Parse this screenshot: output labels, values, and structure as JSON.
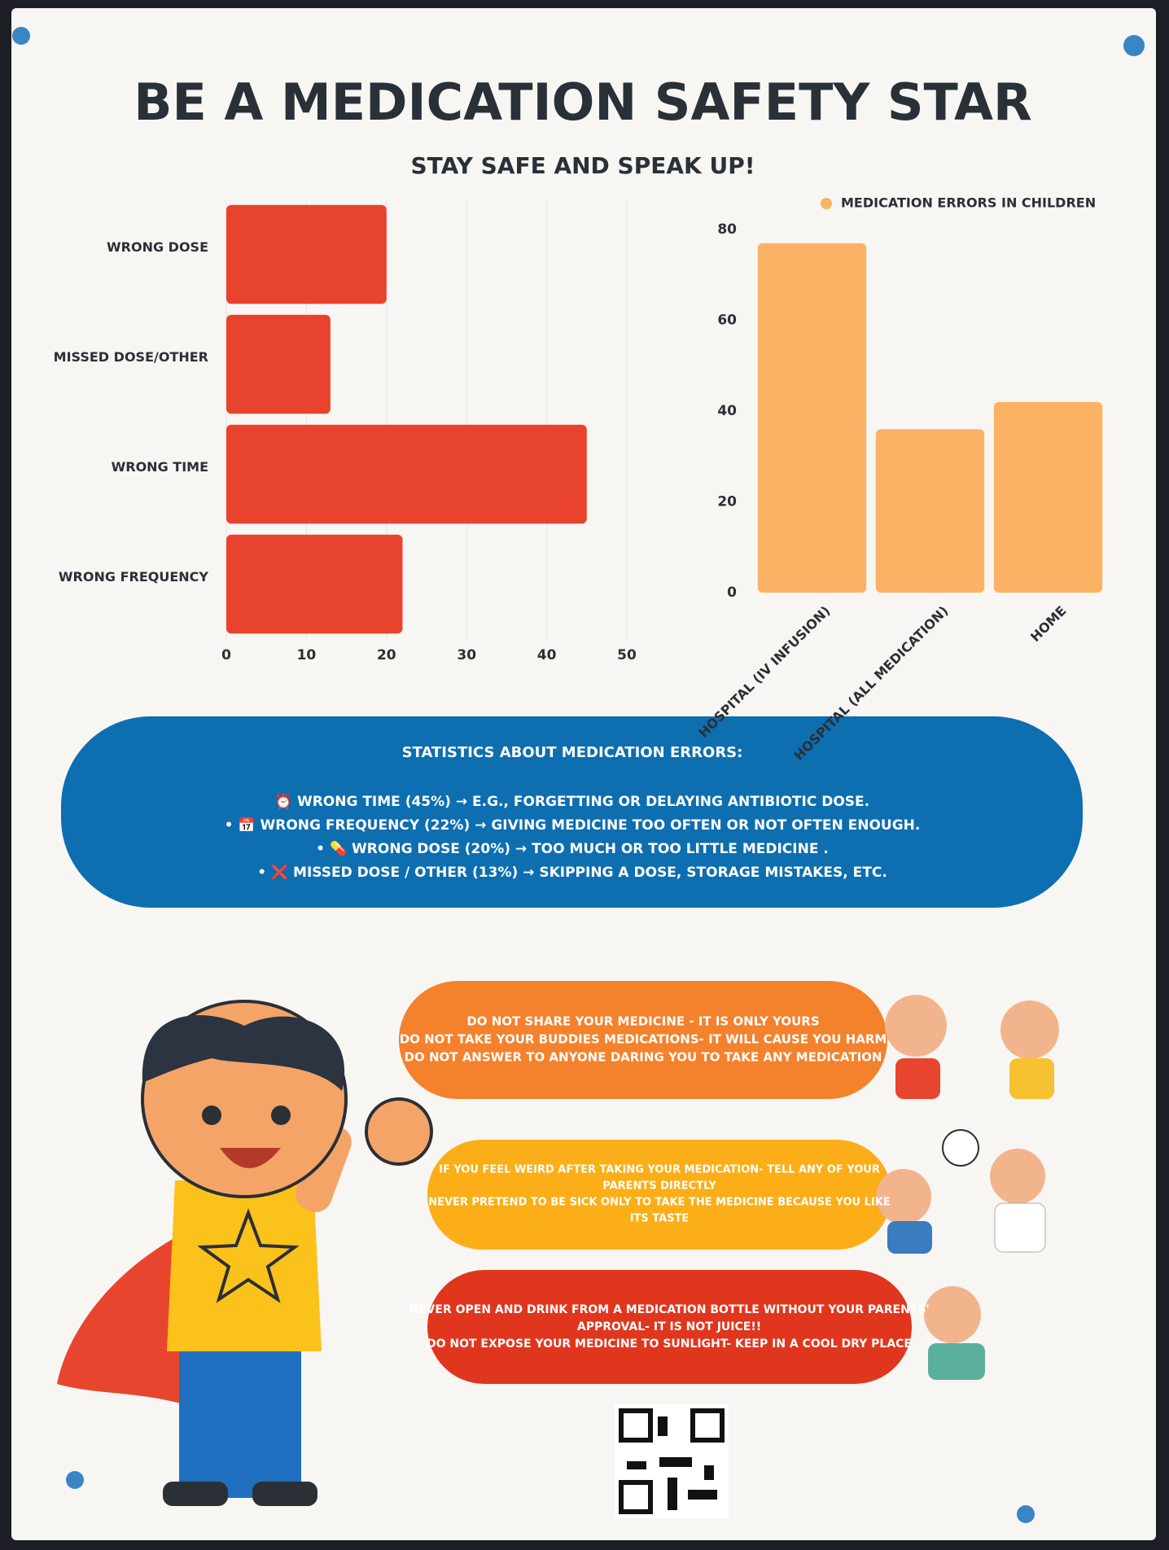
{
  "poster": {
    "title": "BE A MEDICATION SAFETY STAR",
    "subtitle": "STAY SAFE AND SPEAK UP!",
    "stats": {
      "heading": "STATISTICS ABOUT MEDICATION ERRORS:",
      "items": [
        "⏰ WRONG TIME (45%) → E.G., FORGETTING OR DELAYING ANTIBIOTIC DOSE.",
        "• 📅 WRONG FREQUENCY (22%) → GIVING MEDICINE TOO OFTEN OR NOT OFTEN ENOUGH.",
        "• 💊 WRONG DOSE (20%) → TOO MUCH OR TOO LITTLE MEDICINE .",
        "• ❌ MISSED DOSE / OTHER (13%) → SKIPPING A DOSE, STORAGE MISTAKES, ETC."
      ]
    },
    "tips": [
      [
        "DO NOT SHARE YOUR MEDICINE - IT IS ONLY YOURS",
        "DO NOT TAKE YOUR BUDDIES MEDICATIONS- IT WILL CAUSE YOU HARM",
        "DO NOT ANSWER TO ANYONE DARING YOU TO TAKE ANY MEDICATION"
      ],
      [
        "IF YOU FEEL WEIRD AFTER TAKING YOUR MEDICATION- TELL ANY OF YOUR",
        "PARENTS DIRECTLY",
        "NEVER PRETEND TO BE SICK ONLY TO TAKE THE MEDICINE BECAUSE YOU LIKE",
        "ITS TASTE"
      ],
      [
        "NEVER OPEN AND DRINK FROM A MEDICATION BOTTLE WITHOUT YOUR PARENTS'",
        "APPROVAL- IT IS NOT JUICE!!",
        "DO NOT EXPOSE YOUR MEDICINE TO SUNLIGHT- KEEP IN A COOL DRY PLACE"
      ]
    ]
  },
  "chart_data": [
    {
      "type": "hbar",
      "categories": [
        "WRONG DOSE",
        "MISSED DOSE/OTHER",
        "WRONG TIME",
        "WRONG FREQUENCY"
      ],
      "values": [
        20,
        13,
        45,
        22
      ],
      "color": "#e8432d",
      "xlim": [
        0,
        50
      ],
      "xticks": [
        0,
        10,
        20,
        30,
        40,
        50
      ],
      "grid": true
    },
    {
      "type": "bar",
      "categories": [
        "HOSPITAL (IV INFUSION)",
        "HOSPITAL (ALL MEDICATION)",
        "HOME"
      ],
      "series": [
        {
          "name": "MEDICATION ERRORS IN CHILDREN",
          "color": "#fbb264",
          "values": [
            77,
            36,
            42
          ]
        }
      ],
      "ylim": [
        0,
        80
      ],
      "yticks": [
        0,
        20,
        40,
        60,
        80
      ],
      "legend": "top"
    }
  ]
}
